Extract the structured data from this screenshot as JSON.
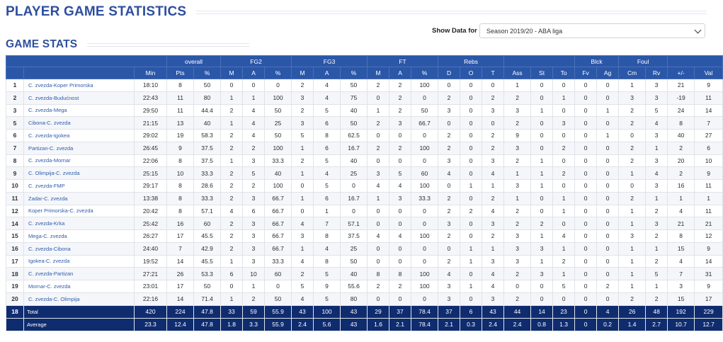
{
  "page_title": "PLAYER GAME STATISTICS",
  "section_title": "GAME STATS",
  "filter": {
    "label": "Show Data for",
    "selected": "Season 2019/20 - ABA liga"
  },
  "groups": [
    "",
    "overall",
    "FG2",
    "FG3",
    "FT",
    "Rebs",
    "",
    "Blck",
    "Foul",
    ""
  ],
  "columns": [
    "",
    "",
    "Min",
    "Pts",
    "%",
    "M",
    "A",
    "%",
    "M",
    "A",
    "%",
    "M",
    "A",
    "%",
    "D",
    "O",
    "T",
    "Ass",
    "St",
    "To",
    "Fv",
    "Ag",
    "Cm",
    "Rv",
    "+/-",
    "Val"
  ],
  "rows": [
    [
      "1",
      "C. zvezda-Koper Primorska",
      "18:10",
      "8",
      "50",
      "0",
      "0",
      "0",
      "2",
      "4",
      "50",
      "2",
      "2",
      "100",
      "0",
      "0",
      "0",
      "1",
      "0",
      "0",
      "0",
      "0",
      "1",
      "3",
      "21",
      "9"
    ],
    [
      "2",
      "C. zvezda-Budućnost",
      "22:43",
      "11",
      "80",
      "1",
      "1",
      "100",
      "3",
      "4",
      "75",
      "0",
      "2",
      "0",
      "2",
      "0",
      "2",
      "2",
      "0",
      "1",
      "0",
      "0",
      "3",
      "3",
      "-19",
      "11"
    ],
    [
      "3",
      "C. zvezda-Mega",
      "29:50",
      "11",
      "44.4",
      "2",
      "4",
      "50",
      "2",
      "5",
      "40",
      "1",
      "2",
      "50",
      "3",
      "0",
      "3",
      "3",
      "1",
      "0",
      "0",
      "1",
      "2",
      "5",
      "24",
      "14"
    ],
    [
      "5",
      "Cibona-C. zvezda",
      "21:15",
      "13",
      "40",
      "1",
      "4",
      "25",
      "3",
      "6",
      "50",
      "2",
      "3",
      "66.7",
      "0",
      "0",
      "0",
      "2",
      "0",
      "3",
      "0",
      "0",
      "2",
      "4",
      "8",
      "7"
    ],
    [
      "6",
      "C. zvezda-Igokea",
      "29:02",
      "19",
      "58.3",
      "2",
      "4",
      "50",
      "5",
      "8",
      "62.5",
      "0",
      "0",
      "0",
      "2",
      "0",
      "2",
      "9",
      "0",
      "0",
      "0",
      "1",
      "0",
      "3",
      "40",
      "27"
    ],
    [
      "7",
      "Partizan-C. zvezda",
      "26:45",
      "9",
      "37.5",
      "2",
      "2",
      "100",
      "1",
      "6",
      "16.7",
      "2",
      "2",
      "100",
      "2",
      "0",
      "2",
      "3",
      "0",
      "2",
      "0",
      "0",
      "2",
      "1",
      "2",
      "6"
    ],
    [
      "8",
      "C. zvezda-Mornar",
      "22:06",
      "8",
      "37.5",
      "1",
      "3",
      "33.3",
      "2",
      "5",
      "40",
      "0",
      "0",
      "0",
      "3",
      "0",
      "3",
      "2",
      "1",
      "0",
      "0",
      "0",
      "2",
      "3",
      "20",
      "10"
    ],
    [
      "9",
      "C. Olimpija-C. zvezda",
      "25:15",
      "10",
      "33.3",
      "2",
      "5",
      "40",
      "1",
      "4",
      "25",
      "3",
      "5",
      "60",
      "4",
      "0",
      "4",
      "1",
      "1",
      "2",
      "0",
      "0",
      "1",
      "4",
      "2",
      "9"
    ],
    [
      "10",
      "C. zvezda-FMP",
      "29:17",
      "8",
      "28.6",
      "2",
      "2",
      "100",
      "0",
      "5",
      "0",
      "4",
      "4",
      "100",
      "0",
      "1",
      "1",
      "3",
      "1",
      "0",
      "0",
      "0",
      "0",
      "3",
      "16",
      "11"
    ],
    [
      "11",
      "Zadar-C. zvezda",
      "13:38",
      "8",
      "33.3",
      "2",
      "3",
      "66.7",
      "1",
      "6",
      "16.7",
      "1",
      "3",
      "33.3",
      "2",
      "0",
      "2",
      "1",
      "0",
      "1",
      "0",
      "0",
      "2",
      "1",
      "1",
      "1"
    ],
    [
      "12",
      "Koper Primorska-C. zvezda",
      "20:42",
      "8",
      "57.1",
      "4",
      "6",
      "66.7",
      "0",
      "1",
      "0",
      "0",
      "0",
      "0",
      "2",
      "2",
      "4",
      "2",
      "0",
      "1",
      "0",
      "0",
      "1",
      "2",
      "4",
      "11"
    ],
    [
      "14",
      "C. zvezda-Krka",
      "25:42",
      "16",
      "60",
      "2",
      "3",
      "66.7",
      "4",
      "7",
      "57.1",
      "0",
      "0",
      "0",
      "3",
      "0",
      "3",
      "2",
      "2",
      "0",
      "0",
      "0",
      "1",
      "3",
      "21",
      "21"
    ],
    [
      "15",
      "Mega-C. zvezda",
      "26:27",
      "17",
      "45.5",
      "2",
      "3",
      "66.7",
      "3",
      "8",
      "37.5",
      "4",
      "4",
      "100",
      "2",
      "0",
      "2",
      "3",
      "1",
      "4",
      "0",
      "0",
      "3",
      "2",
      "8",
      "12"
    ],
    [
      "16",
      "C. zvezda-Cibona",
      "24:40",
      "7",
      "42.9",
      "2",
      "3",
      "66.7",
      "1",
      "4",
      "25",
      "0",
      "0",
      "0",
      "0",
      "1",
      "1",
      "3",
      "3",
      "1",
      "0",
      "0",
      "1",
      "1",
      "15",
      "9"
    ],
    [
      "17",
      "Igokea-C. zvezda",
      "19:52",
      "14",
      "45.5",
      "1",
      "3",
      "33.3",
      "4",
      "8",
      "50",
      "0",
      "0",
      "0",
      "2",
      "1",
      "3",
      "3",
      "1",
      "2",
      "0",
      "0",
      "1",
      "2",
      "4",
      "14"
    ],
    [
      "18",
      "C. zvezda-Partizan",
      "27:21",
      "26",
      "53.3",
      "6",
      "10",
      "60",
      "2",
      "5",
      "40",
      "8",
      "8",
      "100",
      "4",
      "0",
      "4",
      "2",
      "3",
      "1",
      "0",
      "0",
      "1",
      "5",
      "7",
      "31"
    ],
    [
      "19",
      "Mornar-C. zvezda",
      "23:01",
      "17",
      "50",
      "0",
      "1",
      "0",
      "5",
      "9",
      "55.6",
      "2",
      "2",
      "100",
      "3",
      "1",
      "4",
      "0",
      "0",
      "5",
      "0",
      "2",
      "1",
      "1",
      "3",
      "9"
    ],
    [
      "20",
      "C. zvezda-C. Olimpija",
      "22:16",
      "14",
      "71.4",
      "1",
      "2",
      "50",
      "4",
      "5",
      "80",
      "0",
      "0",
      "0",
      "3",
      "0",
      "3",
      "2",
      "0",
      "0",
      "0",
      "0",
      "2",
      "2",
      "15",
      "17"
    ]
  ],
  "total": [
    "18",
    "Total",
    "420",
    "224",
    "47.8",
    "33",
    "59",
    "55.9",
    "43",
    "100",
    "43",
    "29",
    "37",
    "78.4",
    "37",
    "6",
    "43",
    "44",
    "14",
    "23",
    "0",
    "4",
    "26",
    "48",
    "192",
    "229"
  ],
  "average": [
    "",
    "Average",
    "23.3",
    "12.4",
    "47.8",
    "1.8",
    "3.3",
    "55.9",
    "2.4",
    "5.6",
    "43",
    "1.6",
    "2.1",
    "78.4",
    "2.1",
    "0.3",
    "2.4",
    "2.4",
    "0.8",
    "1.3",
    "0",
    "0.2",
    "1.4",
    "2.7",
    "10.7",
    "12.7"
  ]
}
